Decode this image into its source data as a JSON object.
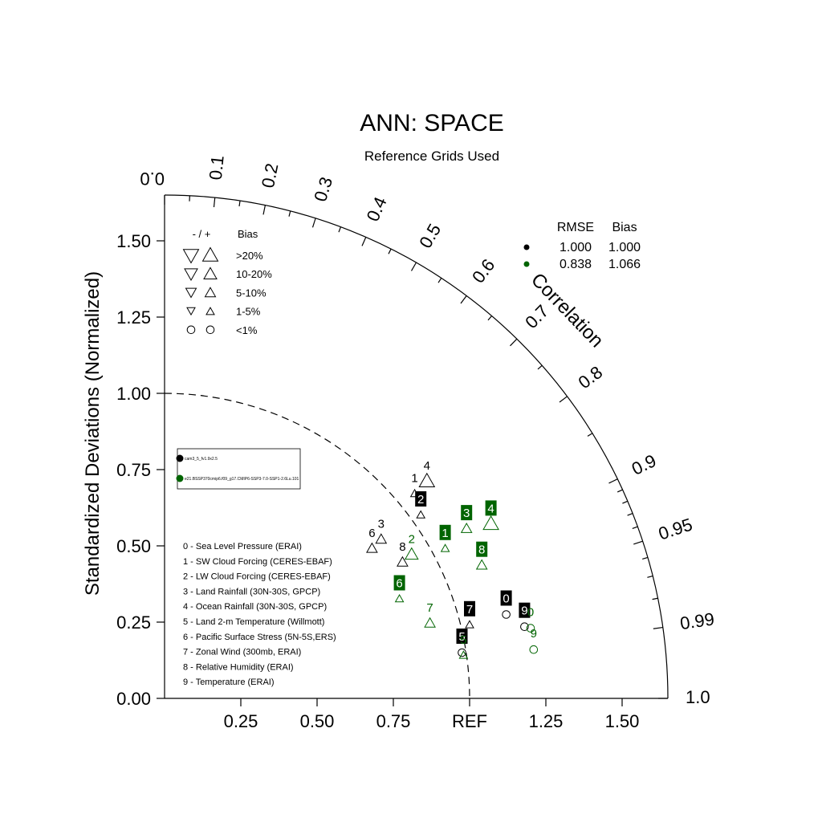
{
  "colors": {
    "case1": "#000000",
    "case2": "#006400"
  },
  "chart_data": {
    "type": "scatter",
    "subtype": "taylor-diagram",
    "title": "ANN: SPACE",
    "subtitle": "Reference Grids Used",
    "ylabel": "Standardized Deviations (Normalized)",
    "xlabel": "",
    "arc_label": "Correlation",
    "ref_label": "REF",
    "std_max": 1.65,
    "y_ticks": [
      "0.00",
      "0.25",
      "0.50",
      "0.75",
      "1.00",
      "1.25",
      "1.50"
    ],
    "x_ticks": [
      "0.25",
      "0.50",
      "0.75",
      "REF",
      "1.25",
      "1.50"
    ],
    "corr_ticks": [
      "0.0",
      "0.1",
      "0.2",
      "0.3",
      "0.4",
      "0.5",
      "0.6",
      "0.7",
      "0.8",
      "0.9",
      "0.95",
      "0.99",
      "1.0"
    ],
    "bias_legend": {
      "header_sign": "- / +",
      "header_bias": "Bias",
      "rows": [
        ">20%",
        "10-20%",
        "5-10%",
        "1-5%",
        "<1%"
      ]
    },
    "stats_table": {
      "headers": [
        "RMSE",
        "Bias"
      ],
      "rows": [
        {
          "series": 0,
          "rmse": "1.000",
          "bias": "1.000"
        },
        {
          "series": 1,
          "rmse": "0.838",
          "bias": "1.066"
        }
      ]
    },
    "case_legend": [
      "cam3_5_fv1.9x2.5",
      "e21.BSSP370cmip6.f09_g17.CMIP6-SSP3-7.0-SSP1-2.6Lu.101"
    ],
    "variables": [
      "0 - Sea Level Pressure (ERAI)",
      "1 - SW Cloud Forcing (CERES-EBAF)",
      "2 - LW Cloud Forcing (CERES-EBAF)",
      "3 - Land Rainfall (30N-30S, GPCP)",
      "4 - Ocean Rainfall (30N-30S, GPCP)",
      "5 - Land 2-m Temperature (Willmott)",
      "6 - Pacific Surface Stress (5N-5S,ERS)",
      "7 - Zonal Wind (300mb, ERAI)",
      "8 - Relative Humidity (ERAI)",
      "9 - Temperature (ERAI)"
    ],
    "series": [
      {
        "name": "cam3_5_fv1.9x2.5",
        "points": [
          {
            "id": "0",
            "x": 1.12,
            "y": 0.275,
            "marker": "circle",
            "size": 0,
            "boxed": true
          },
          {
            "id": "1",
            "x": 0.82,
            "y": 0.67,
            "marker": "up",
            "size": 1,
            "boxed": false
          },
          {
            "id": "2",
            "x": 0.84,
            "y": 0.6,
            "marker": "up",
            "size": 1,
            "boxed": true
          },
          {
            "id": "3",
            "x": 0.71,
            "y": 0.52,
            "marker": "up",
            "size": 2,
            "boxed": false
          },
          {
            "id": "4",
            "x": 0.86,
            "y": 0.71,
            "marker": "up",
            "size": 4,
            "boxed": false
          },
          {
            "id": "5",
            "x": 0.975,
            "y": 0.15,
            "marker": "circle",
            "size": 0,
            "boxed": true
          },
          {
            "id": "6",
            "x": 0.68,
            "y": 0.49,
            "marker": "up",
            "size": 2,
            "boxed": false
          },
          {
            "id": "7",
            "x": 1.0,
            "y": 0.24,
            "marker": "up",
            "size": 1,
            "boxed": true
          },
          {
            "id": "8",
            "x": 0.78,
            "y": 0.445,
            "marker": "up",
            "size": 2,
            "boxed": false
          },
          {
            "id": "9",
            "x": 1.18,
            "y": 0.235,
            "marker": "circle",
            "size": 0,
            "boxed": true
          }
        ]
      },
      {
        "name": "e21.BSSP370cmip6.f09_g17.CMIP6-SSP3-7.0-SSP1-2.6Lu.101",
        "points": [
          {
            "id": "0",
            "x": 1.2,
            "y": 0.23,
            "marker": "circle",
            "size": 0,
            "boxed": false
          },
          {
            "id": "1",
            "x": 0.92,
            "y": 0.49,
            "marker": "up",
            "size": 1,
            "boxed": true
          },
          {
            "id": "2",
            "x": 0.81,
            "y": 0.47,
            "marker": "up",
            "size": 3,
            "boxed": false
          },
          {
            "id": "3",
            "x": 0.99,
            "y": 0.555,
            "marker": "up",
            "size": 2,
            "boxed": true
          },
          {
            "id": "4",
            "x": 1.07,
            "y": 0.57,
            "marker": "up",
            "size": 4,
            "boxed": true
          },
          {
            "id": "5",
            "x": 0.98,
            "y": 0.14,
            "marker": "up",
            "size": 1,
            "boxed": false
          },
          {
            "id": "6",
            "x": 0.77,
            "y": 0.325,
            "marker": "up",
            "size": 1,
            "boxed": true
          },
          {
            "id": "7",
            "x": 0.87,
            "y": 0.245,
            "marker": "up",
            "size": 2,
            "boxed": false
          },
          {
            "id": "8",
            "x": 1.04,
            "y": 0.435,
            "marker": "up",
            "size": 2,
            "boxed": true
          },
          {
            "id": "9",
            "x": 1.21,
            "y": 0.16,
            "marker": "circle",
            "size": 0,
            "boxed": false
          }
        ]
      }
    ]
  }
}
